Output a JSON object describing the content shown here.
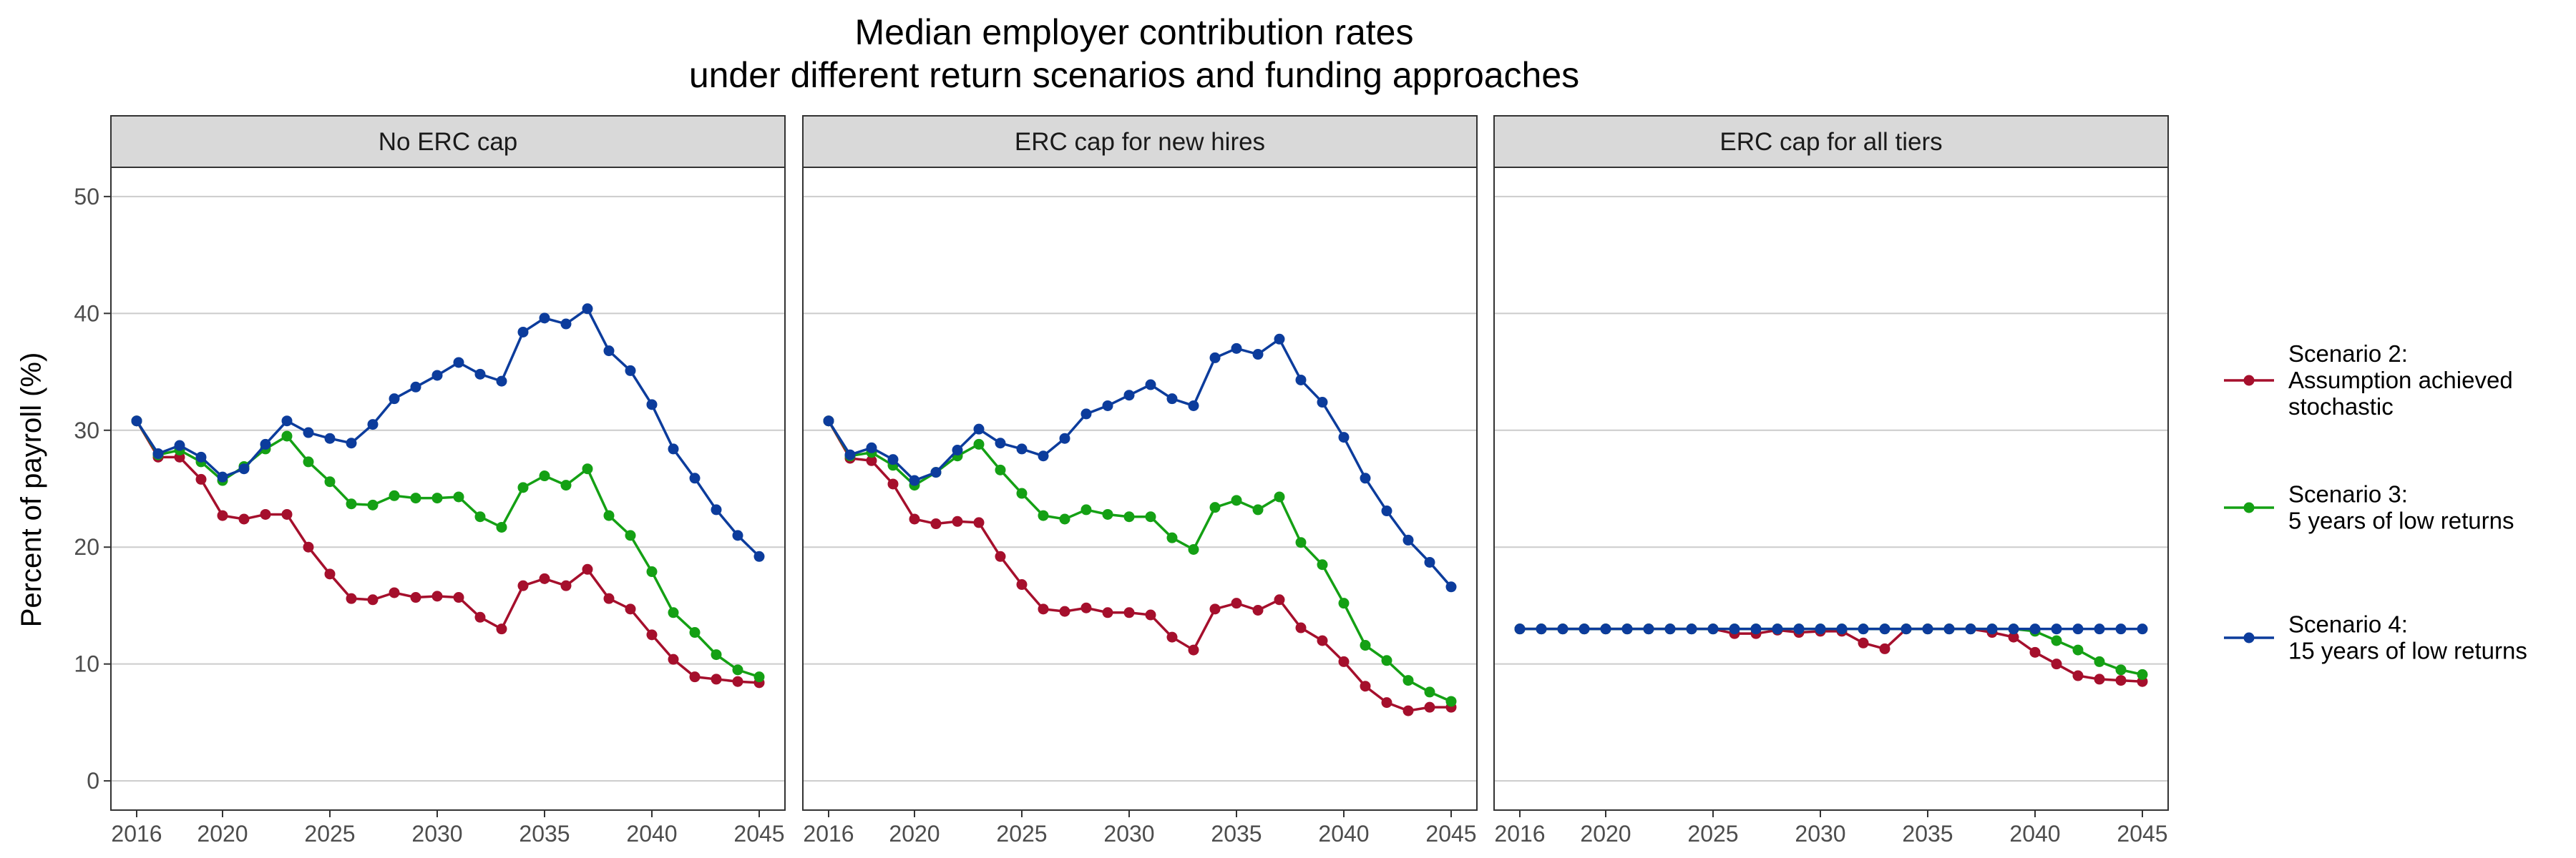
{
  "chart_data": {
    "type": "line",
    "title": [
      "Median employer contribution rates",
      "under different return scenarios and funding approaches"
    ],
    "ylabel": "Percent of payroll (%)",
    "xlabel": "",
    "ylim": [
      -2.5,
      52.5
    ],
    "xlim": [
      2014.8,
      2046.2
    ],
    "yticks": [
      0,
      10,
      20,
      30,
      40,
      50
    ],
    "xticks": [
      2016,
      2020,
      2025,
      2030,
      2035,
      2040,
      2045
    ],
    "grid": true,
    "legend_position": "right",
    "x": [
      2016,
      2017,
      2018,
      2019,
      2020,
      2021,
      2022,
      2023,
      2024,
      2025,
      2026,
      2027,
      2028,
      2029,
      2030,
      2031,
      2032,
      2033,
      2034,
      2035,
      2036,
      2037,
      2038,
      2039,
      2040,
      2041,
      2042,
      2043,
      2044,
      2045
    ],
    "series_style": [
      {
        "name": "Scenario 2:\nAssumption achieved\nstochastic",
        "color": "#a50f2c"
      },
      {
        "name": "Scenario 3:\n5 years of low returns",
        "color": "#14a014"
      },
      {
        "name": "Scenario 4:\n15 years of low returns",
        "color": "#0c3c9c"
      }
    ],
    "panels": [
      {
        "label": "No ERC cap",
        "series": [
          {
            "name": "Scenario 2",
            "values": [
              30.8,
              27.7,
              27.7,
              25.8,
              22.7,
              22.4,
              22.8,
              22.8,
              20.0,
              17.7,
              15.6,
              15.5,
              16.1,
              15.7,
              15.8,
              15.7,
              14.0,
              13.0,
              16.7,
              17.3,
              16.7,
              18.1,
              15.6,
              14.7,
              12.5,
              10.4,
              8.9,
              8.7,
              8.5,
              8.4
            ]
          },
          {
            "name": "Scenario 3",
            "values": [
              30.8,
              27.9,
              28.3,
              27.3,
              25.7,
              26.9,
              28.4,
              29.5,
              27.3,
              25.6,
              23.7,
              23.6,
              24.4,
              24.2,
              24.2,
              24.3,
              22.6,
              21.7,
              25.1,
              26.1,
              25.3,
              26.7,
              22.7,
              21.0,
              17.9,
              14.4,
              12.7,
              10.8,
              9.5,
              8.9
            ]
          },
          {
            "name": "Scenario 4",
            "values": [
              30.8,
              28.0,
              28.7,
              27.7,
              26.0,
              26.7,
              28.8,
              30.8,
              29.8,
              29.3,
              28.9,
              30.5,
              32.7,
              33.7,
              34.7,
              35.8,
              34.8,
              34.2,
              38.4,
              39.6,
              39.1,
              40.4,
              36.8,
              35.1,
              32.2,
              28.4,
              25.9,
              23.2,
              21.0,
              19.2
            ]
          }
        ]
      },
      {
        "label": "ERC cap for new hires",
        "series": [
          {
            "name": "Scenario 2",
            "values": [
              30.8,
              27.6,
              27.4,
              25.4,
              22.4,
              22.0,
              22.2,
              22.1,
              19.2,
              16.8,
              14.7,
              14.5,
              14.8,
              14.4,
              14.4,
              14.2,
              12.3,
              11.2,
              14.7,
              15.2,
              14.6,
              15.5,
              13.1,
              12.0,
              10.2,
              8.1,
              6.7,
              6.0,
              6.3,
              6.3
            ]
          },
          {
            "name": "Scenario 3",
            "values": [
              30.8,
              27.8,
              28.1,
              27.0,
              25.3,
              26.4,
              27.8,
              28.8,
              26.6,
              24.6,
              22.7,
              22.4,
              23.2,
              22.8,
              22.6,
              22.6,
              20.8,
              19.8,
              23.4,
              24.0,
              23.2,
              24.3,
              20.4,
              18.5,
              15.2,
              11.6,
              10.3,
              8.6,
              7.6,
              6.8
            ]
          },
          {
            "name": "Scenario 4",
            "values": [
              30.8,
              27.9,
              28.5,
              27.5,
              25.7,
              26.4,
              28.3,
              30.1,
              28.9,
              28.4,
              27.8,
              29.3,
              31.4,
              32.1,
              33.0,
              33.9,
              32.7,
              32.1,
              36.2,
              37.0,
              36.5,
              37.8,
              34.3,
              32.4,
              29.4,
              25.9,
              23.1,
              20.6,
              18.7,
              16.6
            ]
          }
        ]
      },
      {
        "label": "ERC cap for all tiers",
        "series": [
          {
            "name": "Scenario 2",
            "values": [
              13.0,
              13.0,
              13.0,
              13.0,
              13.0,
              13.0,
              13.0,
              13.0,
              13.0,
              13.0,
              12.6,
              12.6,
              12.9,
              12.7,
              12.8,
              12.8,
              11.8,
              11.3,
              13.0,
              13.0,
              13.0,
              13.0,
              12.7,
              12.3,
              11.0,
              10.0,
              9.0,
              8.7,
              8.6,
              8.5
            ]
          },
          {
            "name": "Scenario 3",
            "values": [
              13.0,
              13.0,
              13.0,
              13.0,
              13.0,
              13.0,
              13.0,
              13.0,
              13.0,
              13.0,
              13.0,
              13.0,
              13.0,
              13.0,
              13.0,
              13.0,
              13.0,
              13.0,
              13.0,
              13.0,
              13.0,
              13.0,
              13.0,
              13.0,
              12.8,
              12.0,
              11.2,
              10.2,
              9.5,
              9.1
            ]
          },
          {
            "name": "Scenario 4",
            "values": [
              13.0,
              13.0,
              13.0,
              13.0,
              13.0,
              13.0,
              13.0,
              13.0,
              13.0,
              13.0,
              13.0,
              13.0,
              13.0,
              13.0,
              13.0,
              13.0,
              13.0,
              13.0,
              13.0,
              13.0,
              13.0,
              13.0,
              13.0,
              13.0,
              13.0,
              13.0,
              13.0,
              13.0,
              13.0,
              13.0
            ]
          }
        ]
      }
    ]
  }
}
